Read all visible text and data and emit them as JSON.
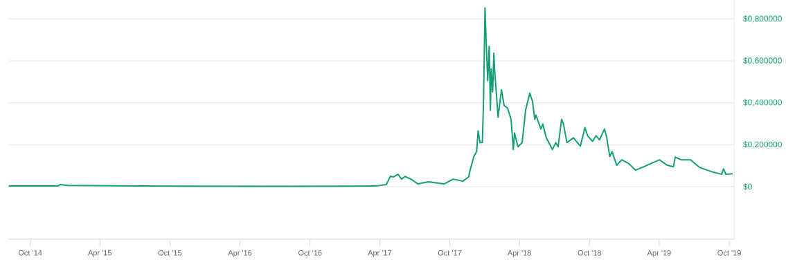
{
  "chart_data": {
    "type": "line",
    "x": [
      "2014-08-06",
      "2014-12-12",
      "2014-12-19",
      "2015-01-08",
      "2015-07-16",
      "2016-07-11",
      "2017-03-20",
      "2017-04-18",
      "2017-04-29",
      "2017-05-06",
      "2017-05-19",
      "2017-05-28",
      "2017-06-06",
      "2017-06-24",
      "2017-07-10",
      "2017-08-06",
      "2017-09-16",
      "2017-10-10",
      "2017-11-04",
      "2017-11-19",
      "2017-11-24",
      "2017-12-03",
      "2017-12-10",
      "2017-12-14",
      "2017-12-19",
      "2017-12-25",
      "2017-12-28",
      "2018-01-01",
      "2018-01-04",
      "2018-01-08",
      "2018-01-12",
      "2018-01-15",
      "2018-01-17",
      "2018-01-21",
      "2018-01-24",
      "2018-01-26",
      "2018-02-02",
      "2018-02-04",
      "2018-02-13",
      "2018-02-20",
      "2018-03-01",
      "2018-03-10",
      "2018-03-16",
      "2018-03-19",
      "2018-03-28",
      "2018-04-08",
      "2018-04-17",
      "2018-04-28",
      "2018-05-05",
      "2018-05-11",
      "2018-05-14",
      "2018-05-27",
      "2018-06-01",
      "2018-06-10",
      "2018-06-26",
      "2018-07-05",
      "2018-07-11",
      "2018-07-20",
      "2018-07-25",
      "2018-08-03",
      "2018-08-20",
      "2018-09-07",
      "2018-09-19",
      "2018-09-26",
      "2018-10-09",
      "2018-10-18",
      "2018-10-27",
      "2018-11-09",
      "2018-11-14",
      "2018-11-23",
      "2018-11-29",
      "2018-12-11",
      "2018-12-24",
      "2019-01-11",
      "2019-01-29",
      "2019-02-16",
      "2019-03-11",
      "2019-04-02",
      "2019-04-22",
      "2019-05-08",
      "2019-05-13",
      "2019-05-28",
      "2019-06-22",
      "2019-07-15",
      "2019-08-20",
      "2019-09-11",
      "2019-09-16",
      "2019-09-22",
      "2019-10-10"
    ],
    "series": [
      {
        "color": "#129e76",
        "values": [
          0.003,
          0.003,
          0.01,
          0.006,
          0.003,
          0.002,
          0.003,
          0.01,
          0.05,
          0.046,
          0.059,
          0.036,
          0.049,
          0.033,
          0.013,
          0.023,
          0.013,
          0.036,
          0.026,
          0.046,
          0.085,
          0.144,
          0.167,
          0.266,
          0.21,
          0.21,
          0.397,
          0.852,
          0.692,
          0.505,
          0.669,
          0.364,
          0.561,
          0.452,
          0.636,
          0.561,
          0.387,
          0.331,
          0.462,
          0.387,
          0.374,
          0.321,
          0.177,
          0.256,
          0.19,
          0.21,
          0.364,
          0.446,
          0.407,
          0.321,
          0.341,
          0.275,
          0.298,
          0.233,
          0.177,
          0.21,
          0.19,
          0.321,
          0.298,
          0.21,
          0.233,
          0.193,
          0.282,
          0.243,
          0.216,
          0.243,
          0.223,
          0.275,
          0.243,
          0.144,
          0.167,
          0.102,
          0.128,
          0.111,
          0.079,
          0.092,
          0.111,
          0.128,
          0.102,
          0.095,
          0.141,
          0.128,
          0.128,
          0.092,
          0.069,
          0.059,
          0.085,
          0.059,
          0.062
        ]
      }
    ],
    "xlim": [
      "2014-08-06",
      "2019-10-14"
    ],
    "xticks": [
      {
        "value": "2014-10-01",
        "label": "Oct '14"
      },
      {
        "value": "2015-04-01",
        "label": "Apr '15"
      },
      {
        "value": "2015-10-01",
        "label": "Oct '15"
      },
      {
        "value": "2016-04-01",
        "label": "Apr '16"
      },
      {
        "value": "2016-10-01",
        "label": "Oct '16"
      },
      {
        "value": "2017-04-01",
        "label": "Apr '17"
      },
      {
        "value": "2017-10-01",
        "label": "Oct '17"
      },
      {
        "value": "2018-04-01",
        "label": "Apr '18"
      },
      {
        "value": "2018-10-01",
        "label": "Oct '18"
      },
      {
        "value": "2019-04-01",
        "label": "Apr '19"
      },
      {
        "value": "2019-10-01",
        "label": "Oct '19"
      }
    ],
    "ylim": [
      -0.25,
      0.89
    ],
    "yticks": [
      {
        "value": 0,
        "label": "$0"
      },
      {
        "value": 0.2,
        "label": "$0,200000"
      },
      {
        "value": 0.4,
        "label": "$0,400000"
      },
      {
        "value": 0.6,
        "label": "$0,600000"
      },
      {
        "value": 0.8,
        "label": "$0,800000"
      }
    ],
    "grid": "y"
  }
}
